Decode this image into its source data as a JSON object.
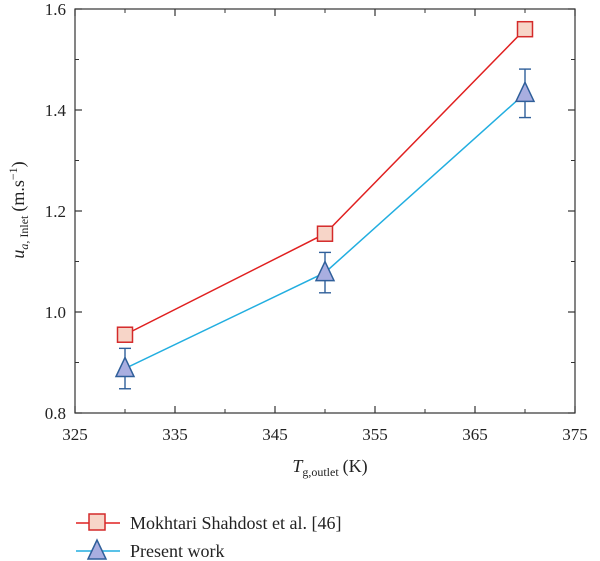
{
  "chart_data": {
    "type": "line",
    "xlabel": {
      "base": "T",
      "sub": "g,outlet",
      "unit": "(K)"
    },
    "ylabel": {
      "base": "u",
      "sub_italic": "a,",
      "sub_roman": " Inlet",
      "unit_prefix": "(m.s",
      "unit_sup": "−1",
      "unit_suffix": ")"
    },
    "xlim": [
      325,
      375
    ],
    "ylim": [
      0.8,
      1.6
    ],
    "xticks": [
      325,
      335,
      345,
      355,
      365,
      375
    ],
    "yticks": [
      0.8,
      1.0,
      1.2,
      1.4,
      1.6
    ],
    "xtick_labels": [
      "325",
      "335",
      "345",
      "355",
      "365",
      "375"
    ],
    "ytick_labels": [
      "0.8",
      "1.0",
      "1.2",
      "1.4",
      "1.6"
    ],
    "grid": false,
    "legend_position": "bottom",
    "series": [
      {
        "name": "Mokhtari Shahdost et al. [46]",
        "x": [
          330,
          350,
          370
        ],
        "y": [
          0.955,
          1.155,
          1.56
        ],
        "marker": "square",
        "line_color": "#e02020",
        "marker_fill": "#f7d5c8",
        "marker_edge": "#d42a2a"
      },
      {
        "name": "Present work",
        "x": [
          330,
          350,
          370
        ],
        "y": [
          0.888,
          1.078,
          1.433
        ],
        "err": [
          0.04,
          0.04,
          0.048
        ],
        "marker": "triangle",
        "line_color": "#22aee0",
        "marker_fill": "#a9aee0",
        "marker_edge": "#2f5f9a"
      }
    ]
  }
}
